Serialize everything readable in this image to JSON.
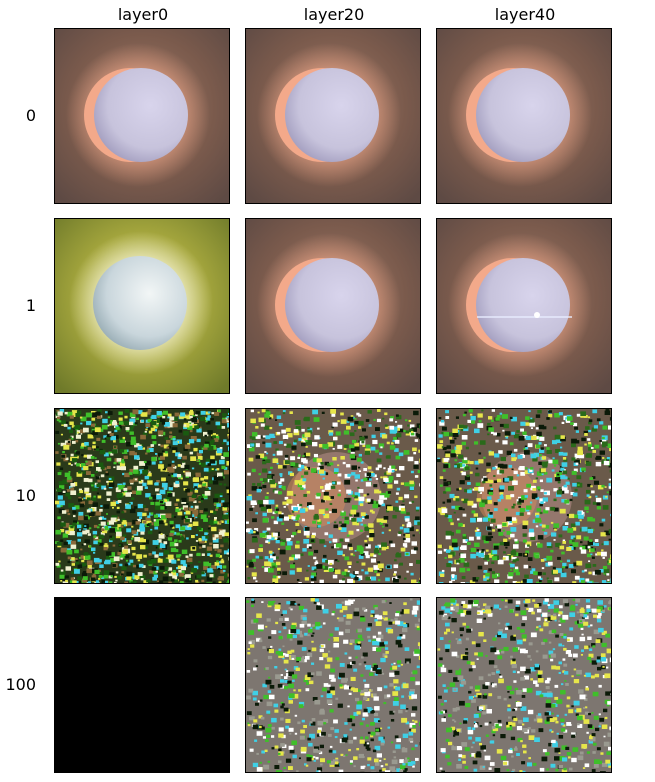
{
  "figure": {
    "columns": [
      "layer0",
      "layer20",
      "layer40"
    ],
    "rows": [
      "0",
      "1",
      "10",
      "100"
    ],
    "panels": [
      [
        "sphere-warm",
        "sphere-warm",
        "sphere-warm"
      ],
      [
        "sphere-green",
        "sphere-warm",
        "sphere-warm-glitch"
      ],
      [
        "noise-full",
        "noise-sphere",
        "noise-sphere"
      ],
      [
        "black",
        "noise-sparse",
        "noise-sparse"
      ]
    ],
    "colors": {
      "warm_bg": "#7a5a4c",
      "green_bg": "#a7a83e",
      "sphere": "#c7c3dc",
      "rim": "#f3a98a",
      "noise_green": "#3fbf2a",
      "noise_cyan": "#3fd0e6",
      "noise_yellow": "#e6e64a",
      "gray_bg": "#7d7670"
    }
  }
}
